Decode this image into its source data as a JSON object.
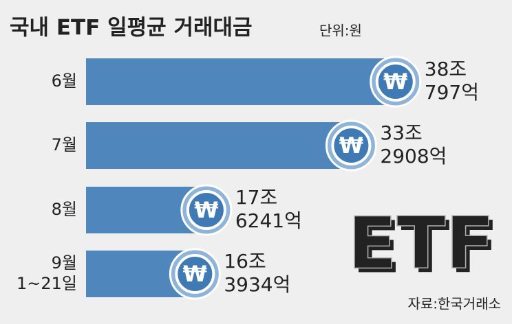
{
  "chart_data": {
    "type": "bar",
    "orientation": "horizontal",
    "title": "국내 ETF 일평균 거래대금",
    "unit": "단위:원",
    "source": "자료:한국거래소",
    "graphic_text": "ETF",
    "icon_symbol": "₩",
    "categories": [
      [
        "6월"
      ],
      [
        "7월"
      ],
      [
        "8월"
      ],
      [
        "9월",
        "1~21일"
      ]
    ],
    "values": [
      380797,
      332908,
      176241,
      163934
    ],
    "value_labels": [
      [
        "38조",
        "797억"
      ],
      [
        "33조",
        "2908억"
      ],
      [
        "17조",
        "6241억"
      ],
      [
        "16조",
        "3934억"
      ]
    ],
    "color": "#4f87bd"
  }
}
